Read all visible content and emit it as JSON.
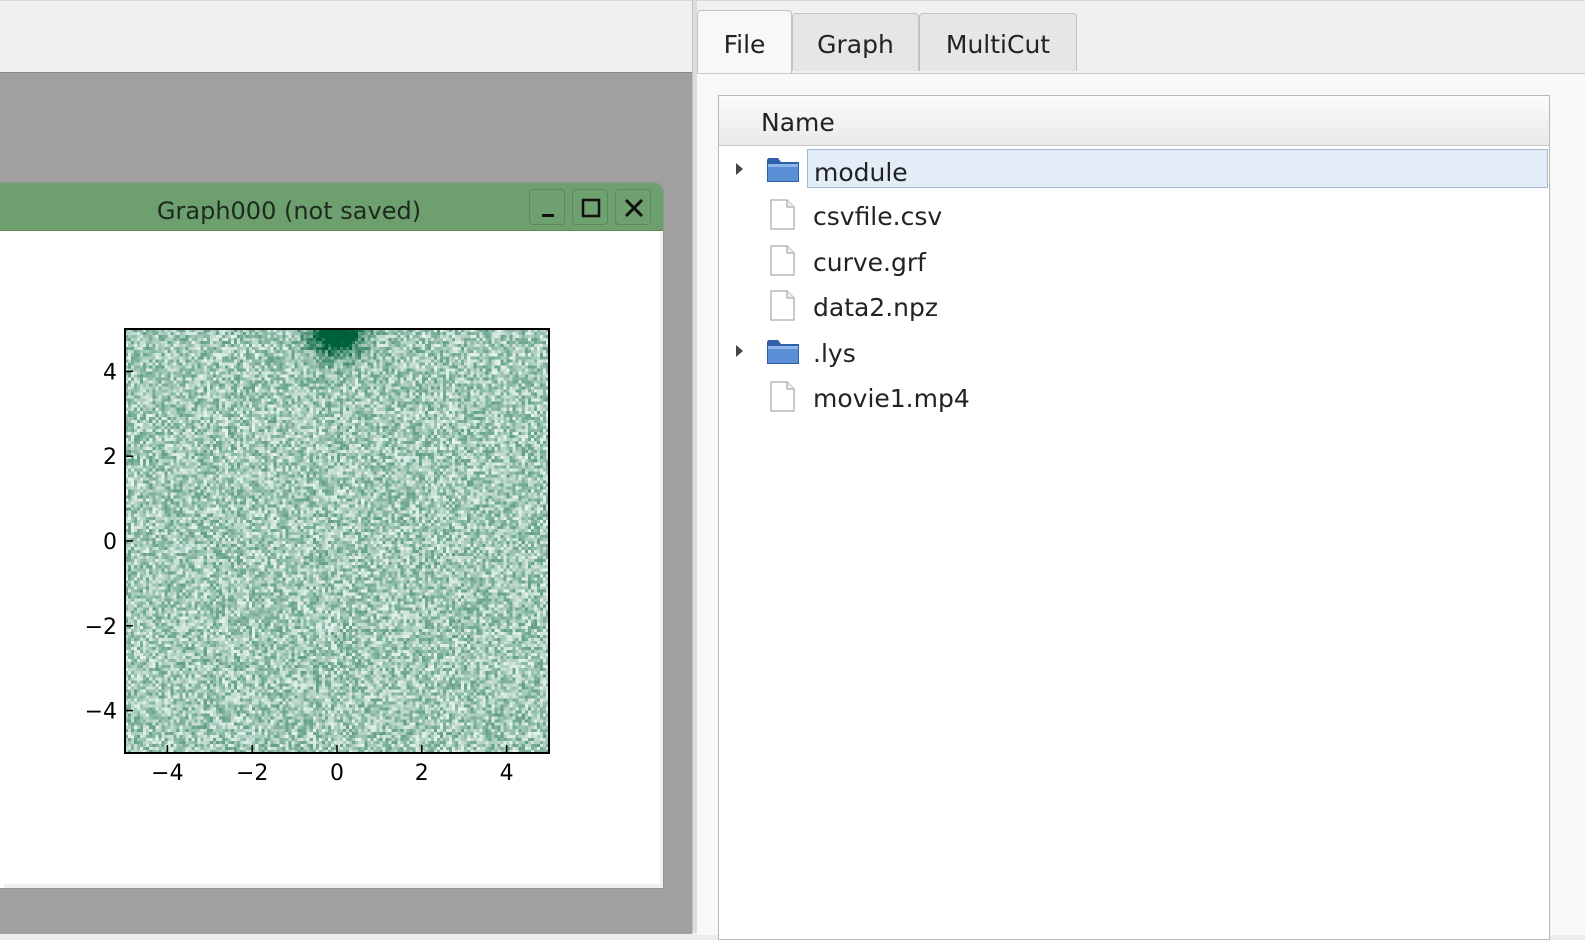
{
  "graph_window": {
    "title": "Graph000 (not saved)",
    "buttons": [
      "minimize",
      "maximize",
      "close"
    ]
  },
  "tabs": [
    {
      "label": "File",
      "active": true
    },
    {
      "label": "Graph",
      "active": false
    },
    {
      "label": "MultiCut",
      "active": false
    }
  ],
  "file_tree": {
    "header": "Name",
    "items": [
      {
        "label": "module",
        "type": "folder",
        "expandable": true,
        "selected": true
      },
      {
        "label": "csvfile.csv",
        "type": "file",
        "expandable": false,
        "selected": false
      },
      {
        "label": "curve.grf",
        "type": "file",
        "expandable": false,
        "selected": false
      },
      {
        "label": "data2.npz",
        "type": "file",
        "expandable": false,
        "selected": false
      },
      {
        "label": ".lys",
        "type": "folder",
        "expandable": true,
        "selected": false
      },
      {
        "label": "movie1.mp4",
        "type": "file",
        "expandable": false,
        "selected": false
      }
    ]
  },
  "chart_data": {
    "type": "heatmap",
    "title": "",
    "xlabel": "",
    "ylabel": "",
    "xlim": [
      -5,
      5
    ],
    "ylim": [
      -5,
      5
    ],
    "xticks": [
      "−4",
      "−2",
      "0",
      "2",
      "4"
    ],
    "yticks": [
      "4",
      "2",
      "0",
      "−2",
      "−4"
    ],
    "xtick_values": [
      -4,
      -2,
      0,
      2,
      4
    ],
    "ytick_values": [
      4,
      2,
      0,
      -2,
      -4
    ],
    "colormap": "white-to-green",
    "colors": {
      "low": "#f2fbf6",
      "high": "#00603a"
    },
    "description_of_values": "random noise field with a dense dark spot near (0, 5)",
    "hotspot": {
      "x": 0,
      "y": 5
    }
  }
}
